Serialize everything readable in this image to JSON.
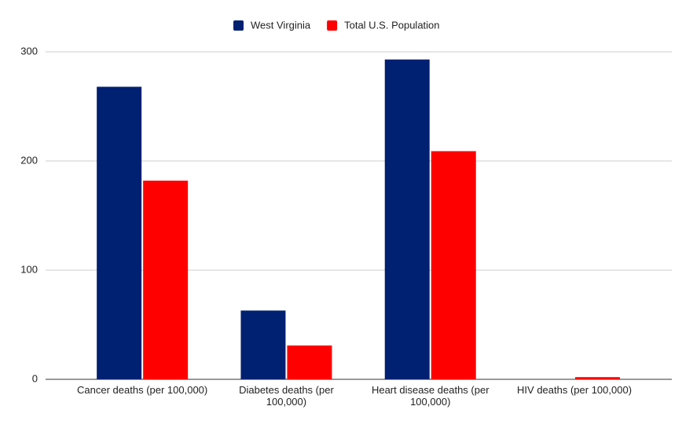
{
  "chart_data": {
    "type": "bar",
    "categories": [
      "Cancer deaths (per 100,000)",
      "Diabetes deaths (per 100,000)",
      "Heart disease deaths (per 100,000)",
      "HIV deaths (per 100,000)"
    ],
    "series": [
      {
        "name": "West Virginia",
        "color": "#002072",
        "values": [
          268,
          63,
          293,
          0
        ]
      },
      {
        "name": "Total U.S. Population",
        "color": "#ff0000",
        "values": [
          182,
          31,
          209,
          2
        ]
      }
    ],
    "ylim": [
      0,
      300
    ],
    "yticks": [
      0,
      100,
      200,
      300
    ],
    "grid": true,
    "legend": "top"
  }
}
